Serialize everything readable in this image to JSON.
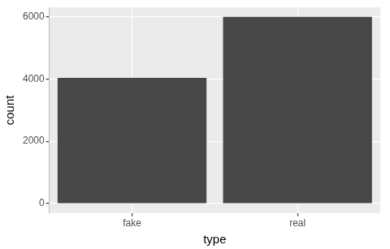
{
  "chart_data": {
    "type": "bar",
    "x_label": "type",
    "y_label": "count",
    "categories": [
      "fake",
      "real"
    ],
    "values": [
      4030,
      5990
    ],
    "color": "#474747",
    "ylim": [
      -300,
      6290
    ],
    "yticks": [
      0,
      2000,
      4000,
      6000
    ],
    "grid": true
  }
}
